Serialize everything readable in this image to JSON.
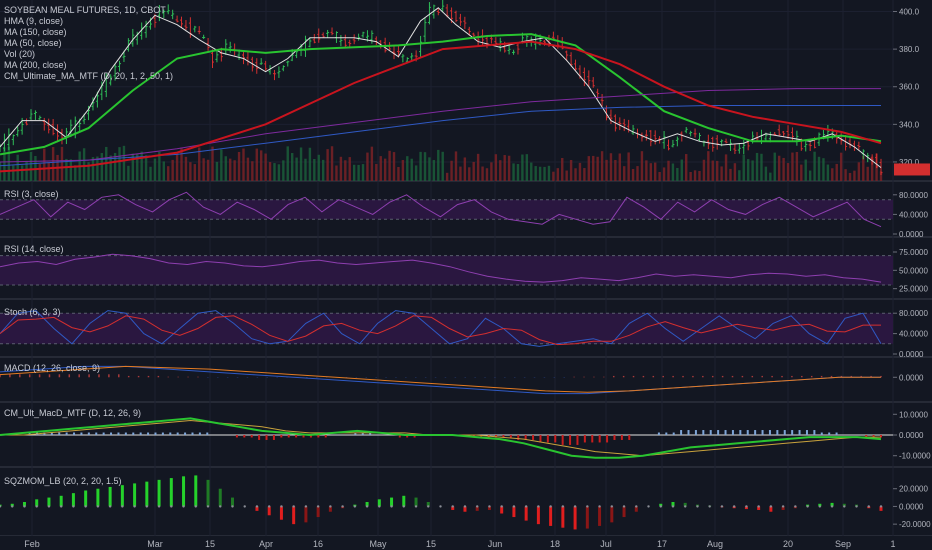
{
  "colors": {
    "background": "#131722",
    "up": "#2ebd57",
    "down": "#d32f2f",
    "hma": "#e0e0e0",
    "ma150": "#2f59c4",
    "ma50": "#29c430",
    "ma200": "#7e2a9e",
    "cm_ma": "#c8141e",
    "rsi": "#8e3fb0",
    "band": "#2a1740",
    "stoch_k": "#2f59c4",
    "stoch_d": "#d32f2f",
    "macd": "#2f59c4",
    "signal": "#e37b23"
  },
  "chart_data": {
    "type": "candlestick",
    "title": "SOYBEAN MEAL FUTURES, 1D, CBOT",
    "x_ticks": [
      "Feb",
      "Mar",
      "15",
      "Apr",
      "16",
      "May",
      "15",
      "Jun",
      "18",
      "Jul",
      "17",
      "Aug",
      "20",
      "Sep",
      "1"
    ],
    "price_ylim": [
      312,
      404
    ],
    "price_ticks": [
      "400.0",
      "380.0",
      "360.0",
      "340.0",
      "320.0"
    ],
    "last_price": 316,
    "price_path": [
      [
        0,
        327
      ],
      [
        8,
        338
      ],
      [
        15,
        345
      ],
      [
        22,
        340
      ],
      [
        28,
        332
      ],
      [
        36,
        342
      ],
      [
        44,
        355
      ],
      [
        52,
        372
      ],
      [
        60,
        385
      ],
      [
        68,
        395
      ],
      [
        75,
        400
      ],
      [
        82,
        394
      ],
      [
        90,
        387
      ],
      [
        96,
        376
      ],
      [
        102,
        380
      ],
      [
        108,
        377
      ],
      [
        115,
        372
      ],
      [
        122,
        368
      ],
      [
        128,
        372
      ],
      [
        134,
        378
      ],
      [
        140,
        385
      ],
      [
        146,
        388
      ],
      [
        152,
        386
      ],
      [
        158,
        384
      ],
      [
        164,
        387
      ],
      [
        170,
        385
      ],
      [
        176,
        378
      ],
      [
        182,
        375
      ],
      [
        188,
        378
      ],
      [
        194,
        400
      ],
      [
        200,
        403
      ],
      [
        206,
        395
      ],
      [
        212,
        389
      ],
      [
        218,
        385
      ],
      [
        224,
        382
      ],
      [
        230,
        380
      ],
      [
        236,
        384
      ],
      [
        242,
        384
      ],
      [
        248,
        386
      ],
      [
        254,
        380
      ],
      [
        260,
        370
      ],
      [
        266,
        362
      ],
      [
        272,
        350
      ],
      [
        278,
        340
      ],
      [
        284,
        337
      ],
      [
        290,
        336
      ],
      [
        296,
        332
      ],
      [
        302,
        330
      ],
      [
        308,
        336
      ],
      [
        314,
        333
      ],
      [
        320,
        331
      ],
      [
        326,
        330
      ],
      [
        332,
        328
      ],
      [
        338,
        330
      ],
      [
        344,
        333
      ],
      [
        350,
        336
      ],
      [
        356,
        334
      ],
      [
        362,
        330
      ],
      [
        368,
        330
      ],
      [
        374,
        336
      ],
      [
        380,
        333
      ],
      [
        386,
        327
      ],
      [
        392,
        324
      ],
      [
        398,
        316
      ]
    ],
    "overlays": [
      {
        "name": "HMA (9, close)",
        "path": [
          [
            0,
            328
          ],
          [
            10,
            342
          ],
          [
            20,
            342
          ],
          [
            30,
            333
          ],
          [
            40,
            348
          ],
          [
            50,
            369
          ],
          [
            60,
            385
          ],
          [
            70,
            398
          ],
          [
            80,
            393
          ],
          [
            90,
            385
          ],
          [
            100,
            378
          ],
          [
            110,
            375
          ],
          [
            120,
            368
          ],
          [
            130,
            375
          ],
          [
            140,
            386
          ],
          [
            150,
            386
          ],
          [
            160,
            386
          ],
          [
            170,
            384
          ],
          [
            180,
            376
          ],
          [
            190,
            395
          ],
          [
            198,
            402
          ],
          [
            206,
            393
          ],
          [
            216,
            384
          ],
          [
            226,
            381
          ],
          [
            236,
            384
          ],
          [
            246,
            386
          ],
          [
            256,
            374
          ],
          [
            266,
            360
          ],
          [
            276,
            342
          ],
          [
            286,
            336
          ],
          [
            296,
            331
          ],
          [
            306,
            335
          ],
          [
            316,
            331
          ],
          [
            326,
            329
          ],
          [
            336,
            330
          ],
          [
            346,
            335
          ],
          [
            356,
            333
          ],
          [
            366,
            331
          ],
          [
            376,
            335
          ],
          [
            386,
            328
          ],
          [
            398,
            317
          ]
        ]
      },
      {
        "name": "MA (150, close)",
        "path": [
          [
            0,
            318
          ],
          [
            40,
            321
          ],
          [
            80,
            324
          ],
          [
            120,
            330
          ],
          [
            160,
            336
          ],
          [
            200,
            342
          ],
          [
            240,
            347
          ],
          [
            280,
            349
          ],
          [
            320,
            350
          ],
          [
            360,
            350
          ],
          [
            398,
            350
          ]
        ]
      },
      {
        "name": "MA (50, close)",
        "path": [
          [
            0,
            324
          ],
          [
            20,
            328
          ],
          [
            40,
            338
          ],
          [
            60,
            358
          ],
          [
            80,
            375
          ],
          [
            100,
            380
          ],
          [
            120,
            378
          ],
          [
            140,
            380
          ],
          [
            160,
            381
          ],
          [
            180,
            382
          ],
          [
            200,
            384
          ],
          [
            220,
            387
          ],
          [
            240,
            388
          ],
          [
            260,
            382
          ],
          [
            280,
            365
          ],
          [
            300,
            347
          ],
          [
            320,
            338
          ],
          [
            340,
            331
          ],
          [
            360,
            331
          ],
          [
            380,
            334
          ],
          [
            398,
            331
          ]
        ]
      },
      {
        "name": "MA (200, close)",
        "path": [
          [
            0,
            320
          ],
          [
            40,
            321
          ],
          [
            80,
            327
          ],
          [
            120,
            335
          ],
          [
            160,
            341
          ],
          [
            200,
            347
          ],
          [
            240,
            352
          ],
          [
            280,
            355
          ],
          [
            320,
            358
          ],
          [
            360,
            359
          ],
          [
            398,
            359
          ]
        ]
      },
      {
        "name": "CM_Ultimate_MA_MTF (D, 20, 1, 2, 50, 1)",
        "path": [
          [
            0,
            315
          ],
          [
            40,
            318
          ],
          [
            80,
            325
          ],
          [
            120,
            340
          ],
          [
            160,
            362
          ],
          [
            200,
            380
          ],
          [
            240,
            384
          ],
          [
            260,
            380
          ],
          [
            280,
            372
          ],
          [
            300,
            360
          ],
          [
            320,
            350
          ],
          [
            340,
            344
          ],
          [
            360,
            340
          ],
          [
            380,
            336
          ],
          [
            398,
            330
          ]
        ]
      }
    ],
    "volume": {
      "name": "Vol (20)"
    },
    "panels": [
      {
        "name": "RSI (3, close)",
        "ticks": [
          "80.0000",
          "40.0000",
          "0.0000"
        ],
        "ylim": [
          0,
          100
        ],
        "values": [
          40,
          55,
          70,
          35,
          65,
          50,
          75,
          80,
          60,
          45,
          70,
          85,
          55,
          40,
          65,
          50,
          30,
          60,
          75,
          45,
          70,
          55,
          40,
          65,
          80,
          55,
          35,
          60,
          70,
          45,
          30,
          25,
          20,
          40,
          30,
          20,
          25,
          75,
          55,
          30,
          65,
          45,
          70,
          50,
          40,
          60,
          75,
          55,
          35,
          50,
          65,
          30,
          15
        ]
      },
      {
        "name": "RSI (14, close)",
        "ticks": [
          "75.0000",
          "50.0000",
          "25.0000"
        ],
        "ylim": [
          15,
          90
        ],
        "values": [
          55,
          60,
          62,
          58,
          65,
          68,
          72,
          70,
          66,
          60,
          58,
          62,
          60,
          56,
          55,
          58,
          62,
          64,
          60,
          58,
          60,
          62,
          64,
          60,
          55,
          48,
          42,
          38,
          35,
          34,
          36,
          40,
          38,
          36,
          40,
          45,
          42,
          44,
          42,
          40,
          44,
          46,
          45,
          42,
          44,
          40,
          38,
          34
        ]
      },
      {
        "name": "Stoch (6, 3, 3)",
        "ticks": [
          "80.0000",
          "40.0000",
          "0.0000"
        ],
        "ylim": [
          0,
          100
        ],
        "values": [
          40,
          80,
          85,
          50,
          20,
          60,
          85,
          80,
          40,
          20,
          50,
          80,
          85,
          60,
          30,
          20,
          25,
          60,
          80,
          40,
          20,
          60,
          85,
          80,
          50,
          20,
          30,
          70,
          50,
          20,
          15,
          20,
          25,
          30,
          20,
          60,
          80,
          50,
          25,
          50,
          75,
          50,
          30,
          60,
          75,
          40,
          20,
          70,
          80,
          20
        ]
      },
      {
        "name": "MACD (12, 26, close, 9)",
        "ticks": [
          "0.0000"
        ],
        "ylim": [
          -8,
          6
        ],
        "macd": [
          2,
          3,
          4,
          4,
          3,
          2,
          1,
          0,
          -1,
          -2,
          -3,
          -4,
          -5,
          -6,
          -6,
          -5,
          -4,
          -3,
          -2,
          -1,
          0,
          0
        ],
        "signal": [
          1,
          2,
          3,
          4,
          3.5,
          3,
          2,
          1,
          0,
          -1,
          -2,
          -3,
          -4,
          -5,
          -5.5,
          -5,
          -4,
          -3,
          -2,
          -1,
          0,
          0
        ]
      },
      {
        "name": "CM_Ult_MacD_MTF (D, 12, 26, 9)",
        "ticks": [
          "10.0000",
          "0.0000",
          "-10.0000"
        ],
        "ylim": [
          -14,
          14
        ],
        "macd": [
          0,
          1,
          2,
          3,
          4,
          5,
          6,
          7,
          8,
          6,
          4,
          2,
          1,
          0,
          1,
          2,
          1,
          0,
          0,
          0,
          -1,
          -2,
          -4,
          -7,
          -10,
          -11,
          -11,
          -10,
          -8,
          -6,
          -5,
          -4,
          -3,
          -2,
          -1,
          -1,
          -1,
          -2
        ],
        "signal": [
          0,
          0,
          1,
          2,
          3,
          4,
          5,
          6,
          7,
          6,
          5,
          4,
          2,
          1,
          1,
          1,
          1,
          1,
          0,
          0,
          0,
          -1,
          -2,
          -4,
          -6,
          -8,
          -9,
          -10,
          -9,
          -8,
          -7,
          -6,
          -5,
          -4,
          -3,
          -2,
          -1,
          -1
        ]
      },
      {
        "name": "SQZMOM_LB (20, 2, 20, 1.5)",
        "ticks": [
          "20.0000",
          "0.0000",
          "-20.0000"
        ],
        "ylim": [
          -30,
          40
        ],
        "values": [
          2,
          3,
          5,
          8,
          10,
          12,
          15,
          18,
          20,
          22,
          24,
          26,
          28,
          30,
          32,
          34,
          35,
          30,
          20,
          10,
          0,
          -5,
          -10,
          -15,
          -20,
          -18,
          -12,
          -6,
          -2,
          2,
          5,
          8,
          10,
          12,
          10,
          5,
          0,
          -4,
          -6,
          -5,
          -4,
          -8,
          -12,
          -16,
          -20,
          -22,
          -24,
          -26,
          -25,
          -22,
          -18,
          -12,
          -6,
          0,
          3,
          5,
          4,
          2,
          1,
          -1,
          -2,
          -3,
          -4,
          -6,
          -4,
          -2,
          2,
          3,
          4,
          3,
          2,
          -2,
          -5
        ]
      }
    ]
  }
}
